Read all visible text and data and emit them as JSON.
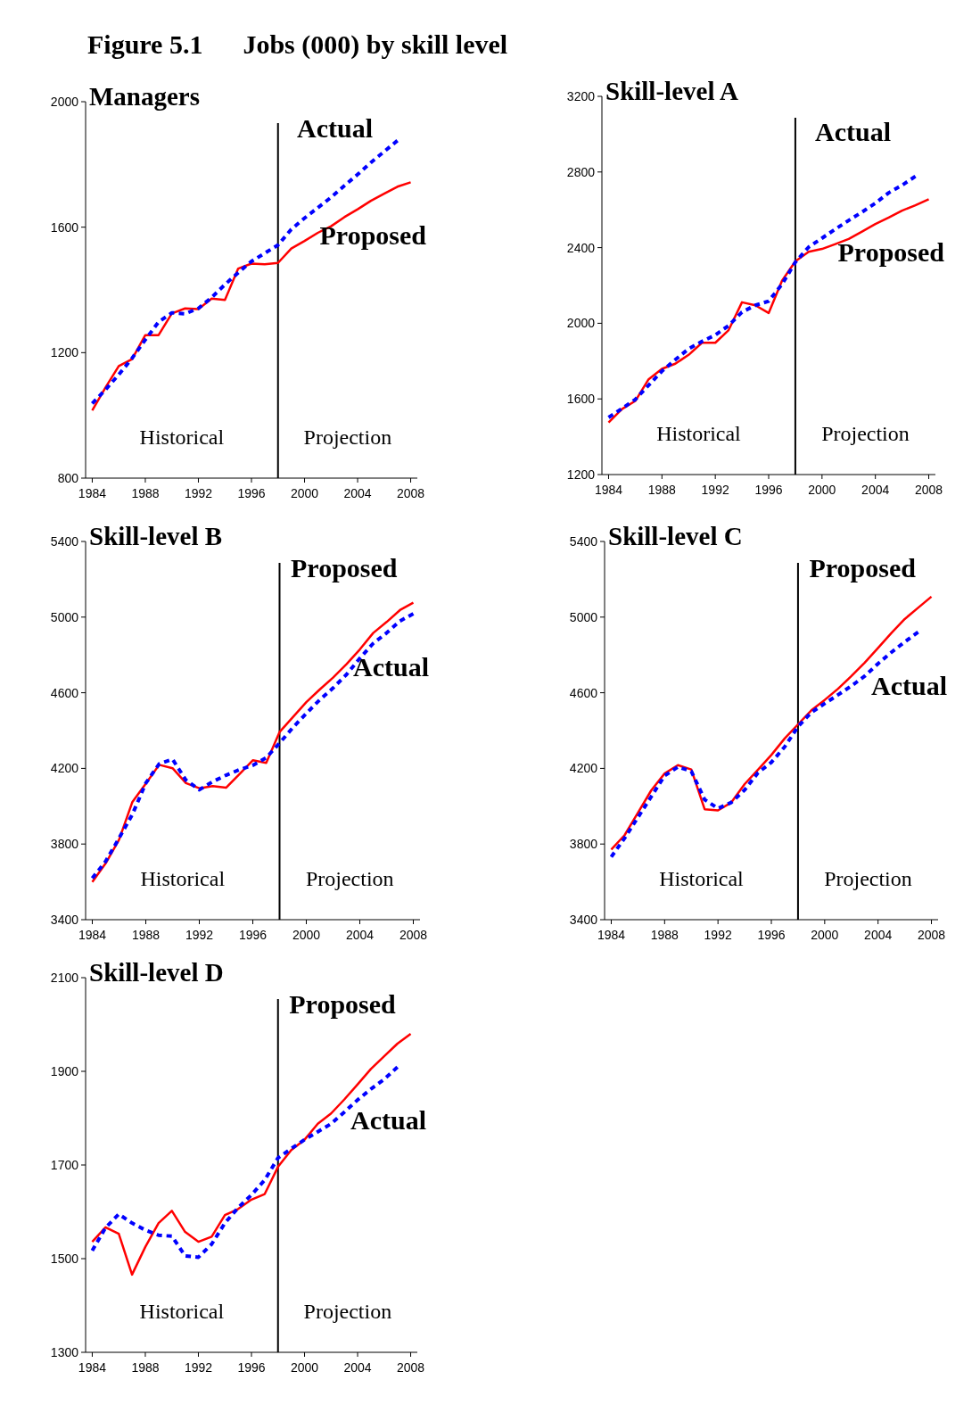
{
  "chart_data": [
    {
      "type": "line",
      "title": "Figure 5.1      Jobs (000) by skill level",
      "subtitle": "Managers",
      "x": [
        1984,
        1985,
        1986,
        1987,
        1988,
        1989,
        1990,
        1991,
        1992,
        1993,
        1994,
        1995,
        1996,
        1997,
        1998,
        1999,
        2000,
        2001,
        2002,
        2003,
        2004,
        2005,
        2006,
        2007,
        2008
      ],
      "xlim": [
        1983.5,
        2008.5
      ],
      "xticks": [
        1984,
        1988,
        1992,
        1996,
        2000,
        2004,
        2008
      ],
      "ylim": [
        800,
        2000
      ],
      "yticks": [
        800,
        1200,
        1600,
        2000
      ],
      "ref_lines": [
        {
          "axis": "x",
          "value": 1998
        }
      ],
      "annotations": [
        "Historical",
        "Projection"
      ],
      "series": [
        {
          "name": "Proposed",
          "color": "#ff0000",
          "line_style": "solid",
          "values": [
            1016,
            1089,
            1157,
            1179,
            1256,
            1256,
            1325,
            1341,
            1339,
            1372,
            1368,
            1468,
            1484,
            1482,
            1486,
            1532,
            1556,
            1582,
            1603,
            1632,
            1657,
            1684,
            1707,
            1729,
            1743
          ]
        },
        {
          "name": "Actual",
          "color": "#0000ff",
          "line_style": "dotted",
          "values": [
            1038,
            1082,
            1130,
            1182,
            1241,
            1298,
            1327,
            1324,
            1341,
            1376,
            1417,
            1455,
            1491,
            1517,
            1543,
            1593,
            1629,
            1662,
            1695,
            1732,
            1768,
            1806,
            1841,
            1876,
            null
          ]
        }
      ]
    },
    {
      "type": "line",
      "title": "Skill-level A",
      "x": [
        1984,
        1985,
        1986,
        1987,
        1988,
        1989,
        1990,
        1991,
        1992,
        1993,
        1994,
        1995,
        1996,
        1997,
        1998,
        1999,
        2000,
        2001,
        2002,
        2003,
        2004,
        2005,
        2006,
        2007,
        2008
      ],
      "xlim": [
        1983.5,
        2008.5
      ],
      "xticks": [
        1984,
        1988,
        1992,
        1996,
        2000,
        2004,
        2008
      ],
      "ylim": [
        1200,
        3200
      ],
      "yticks": [
        1200,
        1600,
        2000,
        2400,
        2800,
        3200
      ],
      "ref_lines": [
        {
          "axis": "x",
          "value": 1998
        }
      ],
      "annotations": [
        "Historical",
        "Projection"
      ],
      "series": [
        {
          "name": "Proposed",
          "color": "#ff0000",
          "line_style": "solid",
          "values": [
            1475,
            1546,
            1589,
            1704,
            1759,
            1786,
            1833,
            1897,
            1897,
            1964,
            2111,
            2095,
            2054,
            2225,
            2327,
            2378,
            2393,
            2419,
            2446,
            2485,
            2525,
            2559,
            2596,
            2624,
            2656
          ]
        },
        {
          "name": "Actual",
          "color": "#0000ff",
          "line_style": "dotted",
          "values": [
            1502,
            1549,
            1597,
            1672,
            1747,
            1807,
            1865,
            1904,
            1938,
            1988,
            2059,
            2095,
            2117,
            2206,
            2323,
            2403,
            2450,
            2498,
            2544,
            2588,
            2635,
            2690,
            2730,
            2777,
            null
          ]
        }
      ]
    },
    {
      "type": "line",
      "title": "Skill-level B",
      "x": [
        1984,
        1985,
        1986,
        1987,
        1988,
        1989,
        1990,
        1991,
        1992,
        1993,
        1994,
        1995,
        1996,
        1997,
        1998,
        1999,
        2000,
        2001,
        2002,
        2003,
        2004,
        2005,
        2006,
        2007,
        2008
      ],
      "xlim": [
        1983.5,
        2008.5
      ],
      "xticks": [
        1984,
        1988,
        1992,
        1996,
        2000,
        2004,
        2008
      ],
      "ylim": [
        3400,
        5400
      ],
      "yticks": [
        3400,
        3800,
        4200,
        4600,
        5000,
        5400
      ],
      "ref_lines": [
        {
          "axis": "x",
          "value": 1998
        }
      ],
      "annotations": [
        "Historical",
        "Projection"
      ],
      "series": [
        {
          "name": "Proposed",
          "color": "#ff0000",
          "line_style": "solid",
          "values": [
            3599,
            3698,
            3823,
            4023,
            4119,
            4219,
            4201,
            4122,
            4095,
            4106,
            4098,
            4169,
            4243,
            4229,
            4392,
            4471,
            4550,
            4617,
            4680,
            4751,
            4829,
            4916,
            4974,
            5037,
            5076
          ]
        },
        {
          "name": "Actual",
          "color": "#0000ff",
          "line_style": "dotted",
          "values": [
            3619,
            3709,
            3831,
            3957,
            4122,
            4224,
            4248,
            4138,
            4087,
            4130,
            4164,
            4193,
            4216,
            4256,
            4334,
            4416,
            4491,
            4562,
            4625,
            4696,
            4782,
            4861,
            4916,
            4979,
            5018
          ]
        }
      ]
    },
    {
      "type": "line",
      "title": "Skill-level C",
      "x": [
        1984,
        1985,
        1986,
        1987,
        1988,
        1989,
        1990,
        1991,
        1992,
        1993,
        1994,
        1995,
        1996,
        1997,
        1998,
        1999,
        2000,
        2001,
        2002,
        2003,
        2004,
        2005,
        2006,
        2007,
        2008
      ],
      "xlim": [
        1983.5,
        2008.5
      ],
      "xticks": [
        1984,
        1988,
        1992,
        1996,
        2000,
        2004,
        2008
      ],
      "ylim": [
        3400,
        5400
      ],
      "yticks": [
        3400,
        3800,
        4200,
        4600,
        5000,
        5400
      ],
      "ref_lines": [
        {
          "axis": "x",
          "value": 1998
        }
      ],
      "annotations": [
        "Historical",
        "Projection"
      ],
      "series": [
        {
          "name": "Proposed",
          "color": "#ff0000",
          "line_style": "solid",
          "values": [
            3771,
            3847,
            3965,
            4084,
            4173,
            4217,
            4194,
            3984,
            3978,
            4020,
            4117,
            4193,
            4271,
            4358,
            4433,
            4507,
            4562,
            4621,
            4688,
            4759,
            4837,
            4916,
            4990,
            5049,
            5108
          ]
        },
        {
          "name": "Actual",
          "color": "#0000ff",
          "line_style": "dotted",
          "values": [
            3732,
            3831,
            3941,
            4051,
            4161,
            4208,
            4185,
            4035,
            3988,
            4020,
            4086,
            4177,
            4232,
            4314,
            4421,
            4496,
            4543,
            4589,
            4636,
            4688,
            4754,
            4814,
            4869,
            4921,
            null
          ]
        }
      ]
    },
    {
      "type": "line",
      "title": "Skill-level D",
      "x": [
        1984,
        1985,
        1986,
        1987,
        1988,
        1989,
        1990,
        1991,
        1992,
        1993,
        1994,
        1995,
        1996,
        1997,
        1998,
        1999,
        2000,
        2001,
        2002,
        2003,
        2004,
        2005,
        2006,
        2007,
        2008
      ],
      "xlim": [
        1983.5,
        2008.5
      ],
      "xticks": [
        1984,
        1988,
        1992,
        1996,
        2000,
        2004,
        2008
      ],
      "ylim": [
        1300,
        2100
      ],
      "yticks": [
        1300,
        1500,
        1700,
        1900,
        2100
      ],
      "ref_lines": [
        {
          "axis": "x",
          "value": 1998
        }
      ],
      "annotations": [
        "Historical",
        "Projection"
      ],
      "series": [
        {
          "name": "Proposed",
          "color": "#ff0000",
          "line_style": "solid",
          "values": [
            1536,
            1567,
            1553,
            1466,
            1525,
            1576,
            1602,
            1557,
            1536,
            1547,
            1593,
            1606,
            1626,
            1638,
            1696,
            1732,
            1754,
            1788,
            1810,
            1840,
            1872,
            1905,
            1932,
            1959,
            1980
          ]
        },
        {
          "name": "Actual",
          "color": "#0000ff",
          "line_style": "dotted",
          "values": [
            1517,
            1566,
            1595,
            1576,
            1561,
            1550,
            1548,
            1506,
            1503,
            1531,
            1576,
            1609,
            1636,
            1668,
            1715,
            1735,
            1754,
            1771,
            1788,
            1813,
            1839,
            1862,
            1883,
            1909,
            null
          ]
        }
      ]
    }
  ]
}
